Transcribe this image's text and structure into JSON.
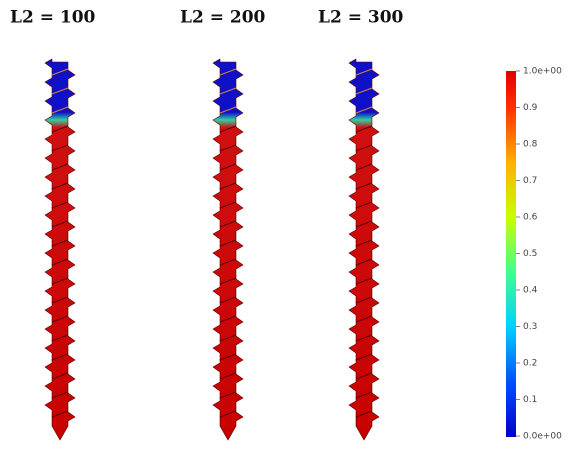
{
  "panels": [
    {
      "label": "L2 = 100"
    },
    {
      "label": "L2 = 200"
    },
    {
      "label": "L2 = 300"
    }
  ],
  "colorbar": {
    "tick_labels": [
      "1.0e+00",
      "0.9",
      "0.8",
      "0.7",
      "0.6",
      "0.5",
      "0.4",
      "0.3",
      "0.2",
      "0.1",
      "0.0e+00"
    ]
  }
}
